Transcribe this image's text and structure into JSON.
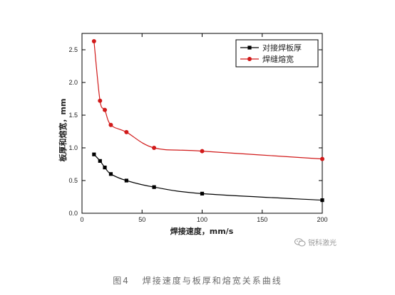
{
  "figure_caption": {
    "label": "图4",
    "text": "焊接速度与板厚和熔宽关系曲线"
  },
  "watermark": {
    "text": "锐科激光",
    "icon": "wechat-icon"
  },
  "chart_data": {
    "type": "line",
    "title": "",
    "xlabel": "焊接速度，mm/s",
    "ylabel": "板厚和熔宽，mm",
    "xlim": [
      0,
      200
    ],
    "ylim": [
      0,
      2.75
    ],
    "xticks": [
      "0",
      "50",
      "100",
      "150",
      "200"
    ],
    "yticks": [
      "0.0",
      "0.5",
      "1.0",
      "1.5",
      "2.0",
      "2.5"
    ],
    "grid": false,
    "legend_position": "top-right",
    "series": [
      {
        "name": "对接焊板厚",
        "color": "#000000",
        "marker": "square",
        "x": [
          10,
          15,
          19,
          24,
          37,
          60,
          100,
          200
        ],
        "y": [
          0.9,
          0.8,
          0.7,
          0.6,
          0.5,
          0.4,
          0.3,
          0.2
        ]
      },
      {
        "name": "焊缝熔宽",
        "color": "#d11a1a",
        "marker": "circle",
        "x": [
          10,
          15,
          19,
          24,
          37,
          60,
          100,
          200
        ],
        "y": [
          2.63,
          1.72,
          1.58,
          1.35,
          1.24,
          1.0,
          0.95,
          0.83
        ]
      }
    ]
  }
}
